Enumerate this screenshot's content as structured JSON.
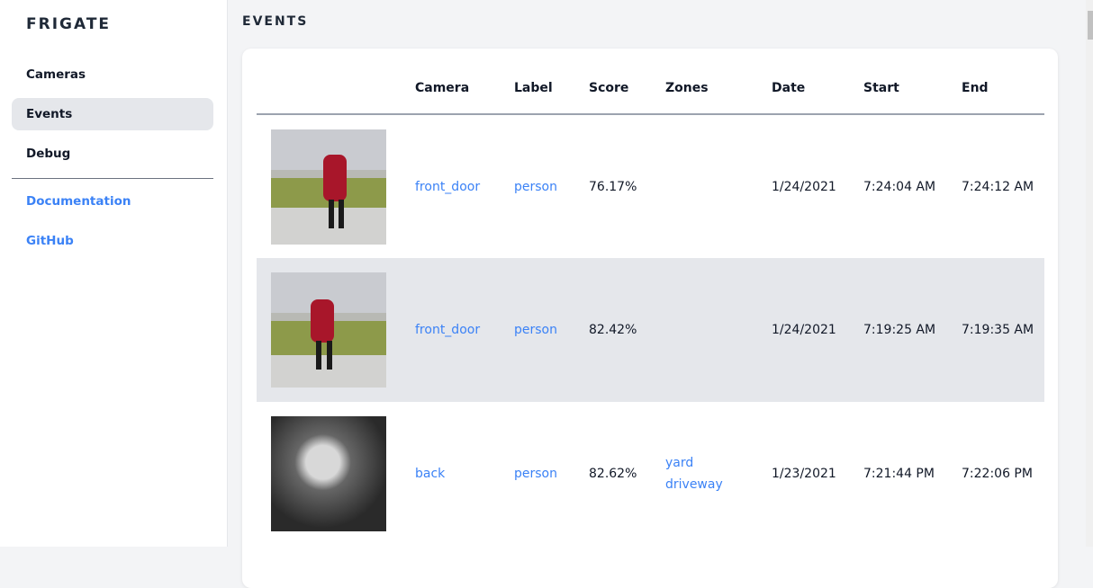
{
  "sidebar": {
    "brand": "FRIGATE",
    "items": [
      {
        "label": "Cameras"
      },
      {
        "label": "Events",
        "active": true
      },
      {
        "label": "Debug"
      }
    ],
    "links": [
      {
        "label": "Documentation"
      },
      {
        "label": "GitHub"
      }
    ]
  },
  "page": {
    "title": "EVENTS"
  },
  "table": {
    "headers": [
      "",
      "Camera",
      "Label",
      "Score",
      "Zones",
      "Date",
      "Start",
      "End"
    ],
    "rows": [
      {
        "camera": "front_door",
        "label": "person",
        "score": "76.17%",
        "zones": [
          "",
          ""
        ],
        "date": "1/24/2021",
        "start": "7:24:04 AM",
        "end": "7:24:12 AM"
      },
      {
        "camera": "front_door",
        "label": "person",
        "score": "82.42%",
        "zones": [
          "",
          ""
        ],
        "date": "1/24/2021",
        "start": "7:19:25 AM",
        "end": "7:19:35 AM"
      },
      {
        "camera": "back",
        "label": "person",
        "score": "82.62%",
        "zones": [
          "yard",
          "driveway"
        ],
        "date": "1/23/2021",
        "start": "7:21:44 PM",
        "end": "7:22:06 PM"
      }
    ]
  },
  "colors": {
    "accent": "#3b82f6",
    "active_bg": "#e5e7eb",
    "page_bg": "#f3f4f6"
  }
}
